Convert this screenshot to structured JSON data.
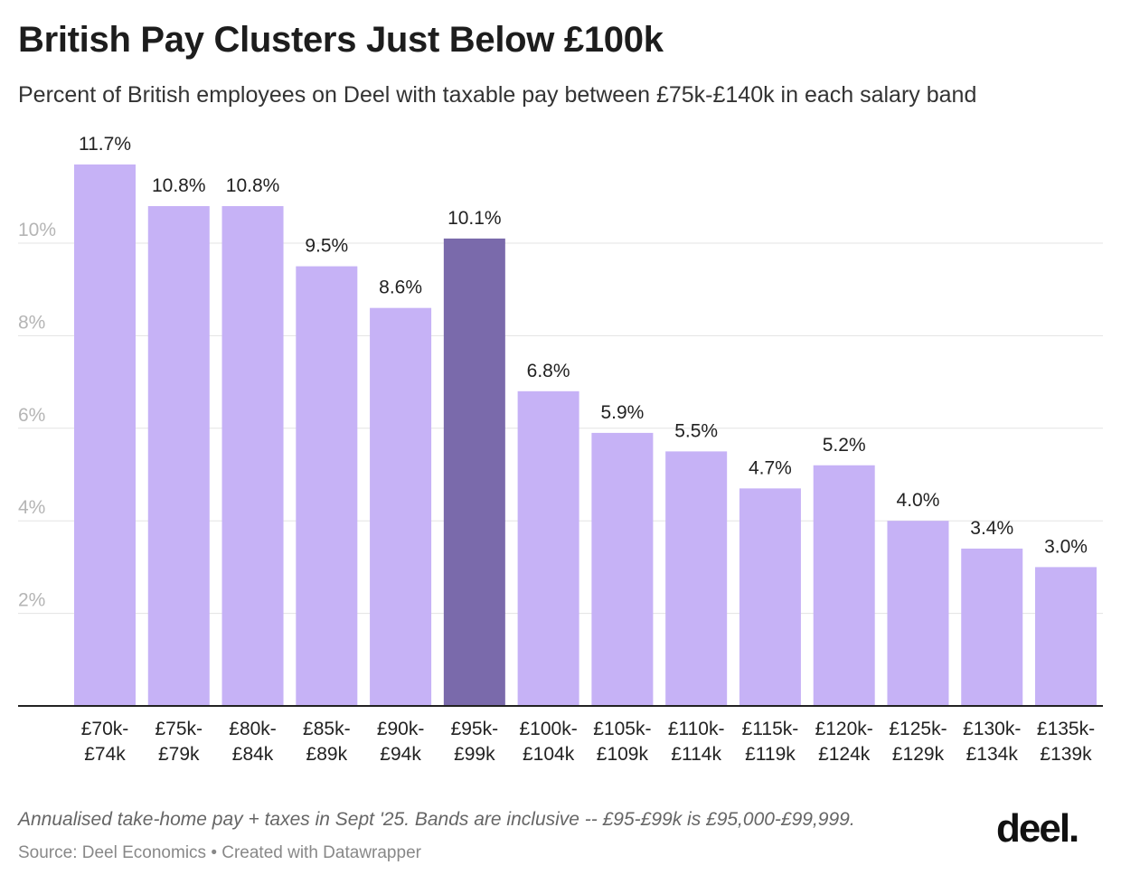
{
  "chart_data": {
    "type": "bar",
    "title": "British Pay Clusters Just Below £100k",
    "subtitle": "Percent of British employees on Deel with taxable pay between £75k-£140k in each salary band",
    "categories": [
      [
        "£70k-",
        "£74k"
      ],
      [
        "£75k-",
        "£79k"
      ],
      [
        "£80k-",
        "£84k"
      ],
      [
        "£85k-",
        "£89k"
      ],
      [
        "£90k-",
        "£94k"
      ],
      [
        "£95k-",
        "£99k"
      ],
      [
        "£100k-",
        "£104k"
      ],
      [
        "£105k-",
        "£109k"
      ],
      [
        "£110k-",
        "£114k"
      ],
      [
        "£115k-",
        "£119k"
      ],
      [
        "£120k-",
        "£124k"
      ],
      [
        "£125k-",
        "£129k"
      ],
      [
        "£130k-",
        "£134k"
      ],
      [
        "£135k-",
        "£139k"
      ]
    ],
    "values": [
      11.7,
      10.8,
      10.8,
      9.5,
      8.6,
      10.1,
      6.8,
      5.9,
      5.5,
      4.7,
      5.2,
      4.0,
      3.4,
      3.0
    ],
    "data_labels": [
      "11.7%",
      "10.8%",
      "10.8%",
      "9.5%",
      "8.6%",
      "10.1%",
      "6.8%",
      "5.9%",
      "5.5%",
      "4.7%",
      "5.2%",
      "4.0%",
      "3.4%",
      "3.0%"
    ],
    "highlighted_category_index": 5,
    "yticks": [
      2,
      4,
      6,
      8,
      10
    ],
    "ytick_labels": [
      "2%",
      "4%",
      "6%",
      "8%",
      "10%"
    ],
    "ylim": [
      0,
      12
    ],
    "grid": true,
    "xlabel": "",
    "ylabel": "",
    "colors": {
      "bar": "#c6b2f6",
      "highlight": "#7a6aab",
      "grid": "#e3e3e3",
      "axis": "#222222"
    }
  },
  "footer": {
    "note": "Annualised take-home pay + taxes in Sept '25. Bands are inclusive -- £95-£99k is £95,000-£99,999.",
    "source": "Source: Deel Economics • Created with Datawrapper",
    "logo_text": "deel."
  }
}
